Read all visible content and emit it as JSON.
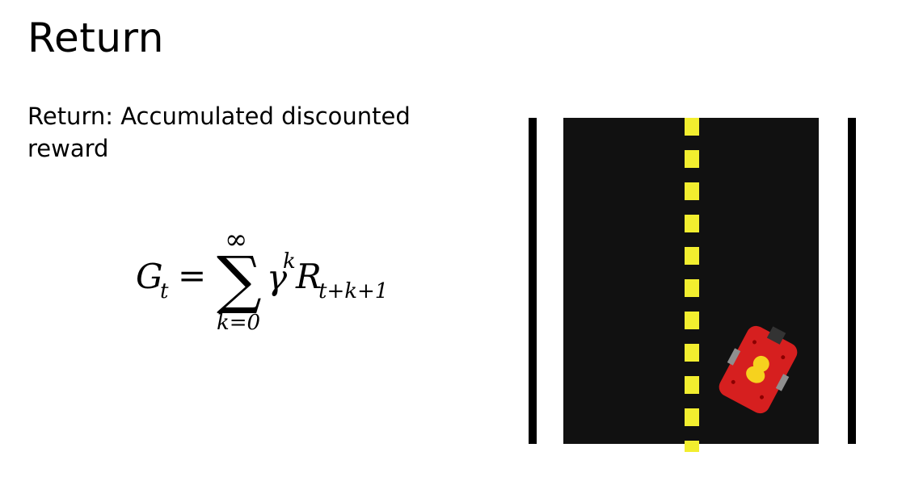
{
  "slide": {
    "title": "Return",
    "subtitle": "Return: Accumulated discounted reward",
    "formula": {
      "lhs_symbol": "G",
      "lhs_subscript": "t",
      "equals": "=",
      "sum_upper": "∞",
      "sum_symbol": "∑",
      "sum_lower": "k=0",
      "gamma": "γ",
      "gamma_exponent": "k",
      "reward_symbol": "R",
      "reward_subscript": "t+k+1"
    }
  },
  "illustration": {
    "colors": {
      "road": "#111111",
      "lane_dash": "#f2ee2f",
      "curb": "#000000",
      "car_body": "#d61f1f",
      "driver": "#f6d21e"
    }
  }
}
